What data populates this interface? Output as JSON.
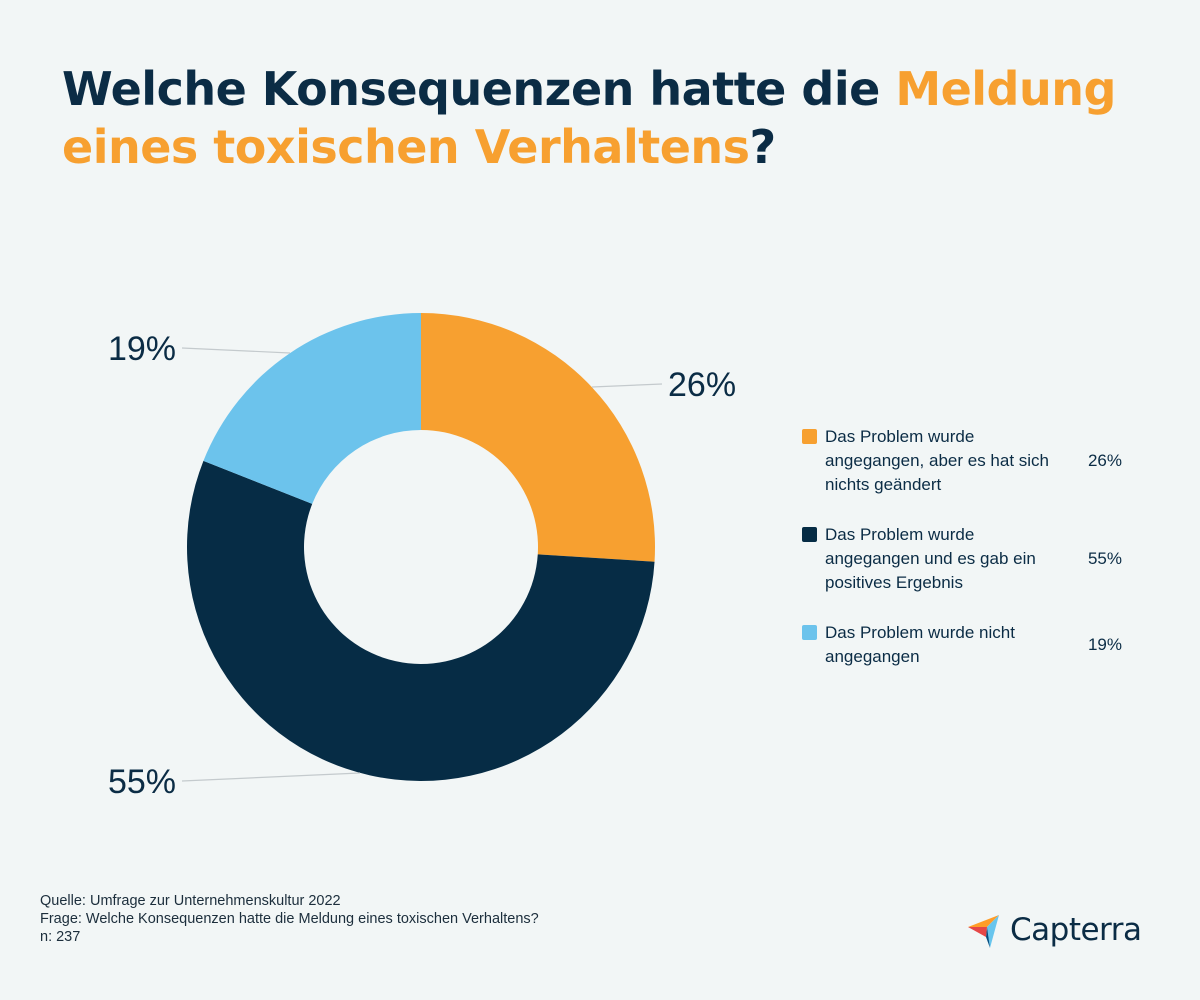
{
  "title": {
    "part1": "Welche Konsequenzen hatte die ",
    "highlight1": "Meldung",
    "part2": " ",
    "highlight2": "eines toxischen Verhaltens",
    "part3": "?"
  },
  "colors": {
    "dark": "#062c45",
    "orange": "#f7a030",
    "light_blue": "#6cc3ec",
    "background": "#f2f6f6"
  },
  "chart_data": {
    "type": "pie",
    "donut": true,
    "title": "Welche Konsequenzen hatte die Meldung eines toxischen Verhaltens?",
    "legend_position": "right",
    "slices": [
      {
        "label": "Das Problem wurde angegangen, aber es hat sich nichts geändert",
        "value": 26,
        "display": "26%",
        "color": "#f7a030"
      },
      {
        "label": "Das Problem wurde angegangen und es gab ein positives Ergebnis",
        "value": 55,
        "display": "55%",
        "color": "#062c45"
      },
      {
        "label": "Das Problem wurde nicht angegangen",
        "value": 19,
        "display": "19%",
        "color": "#6cc3ec"
      }
    ]
  },
  "footer": {
    "source": "Quelle: Umfrage zur Unternehmenskultur 2022",
    "question": "Frage: Welche Konsequenzen hatte die Meldung eines toxischen Verhaltens?",
    "sample": "n: 237"
  },
  "logo": {
    "text": "Capterra",
    "icon": "capterra-arrow-icon"
  }
}
